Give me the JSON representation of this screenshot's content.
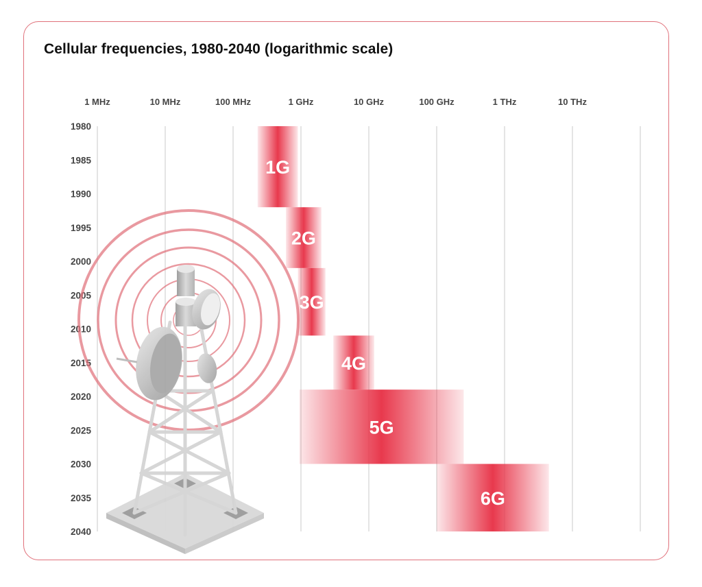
{
  "chart_data": {
    "type": "bar",
    "title": "Cellular frequencies, 1980-2040 (logarithmic scale)",
    "x_scale": "log",
    "x_ticks": [
      {
        "value": 1000000.0,
        "label": "1 MHz"
      },
      {
        "value": 10000000.0,
        "label": "10 MHz"
      },
      {
        "value": 100000000.0,
        "label": "100 MHz"
      },
      {
        "value": 1000000000.0,
        "label": "1 GHz"
      },
      {
        "value": 10000000000.0,
        "label": "10 GHz"
      },
      {
        "value": 100000000000.0,
        "label": "100 GHz"
      },
      {
        "value": 1000000000000.0,
        "label": "1 THz"
      },
      {
        "value": 10000000000000.0,
        "label": "10 THz"
      }
    ],
    "xlim_hz": [
      1000000.0,
      100000000000000.0
    ],
    "y_ticks": [
      1980,
      1985,
      1990,
      1995,
      2000,
      2005,
      2010,
      2015,
      2020,
      2025,
      2030,
      2035,
      2040
    ],
    "ylim": [
      1980,
      2040
    ],
    "series": [
      {
        "name": "1G",
        "freq_min_hz": 230000000.0,
        "freq_max_hz": 900000000.0,
        "year_start": 1980,
        "year_end": 1992
      },
      {
        "name": "2G",
        "freq_min_hz": 600000000.0,
        "freq_max_hz": 2000000000.0,
        "year_start": 1992,
        "year_end": 2001
      },
      {
        "name": "3G",
        "freq_min_hz": 900000000.0,
        "freq_max_hz": 2300000000.0,
        "year_start": 2001,
        "year_end": 2011
      },
      {
        "name": "4G",
        "freq_min_hz": 3000000000.0,
        "freq_max_hz": 12000000000.0,
        "year_start": 2011,
        "year_end": 2019
      },
      {
        "name": "5G",
        "freq_min_hz": 950000000.0,
        "freq_max_hz": 250000000000.0,
        "year_start": 2019,
        "year_end": 2030
      },
      {
        "name": "6G",
        "freq_min_hz": 100000000000.0,
        "freq_max_hz": 4500000000000.0,
        "year_start": 2030,
        "year_end": 2040
      }
    ]
  },
  "colors": {
    "bar": "#e8394d",
    "grid": "#c8c8c8",
    "rings": "#e0707a",
    "border": "#e0707a"
  },
  "illustration": {
    "icon": "cell-tower-icon"
  }
}
